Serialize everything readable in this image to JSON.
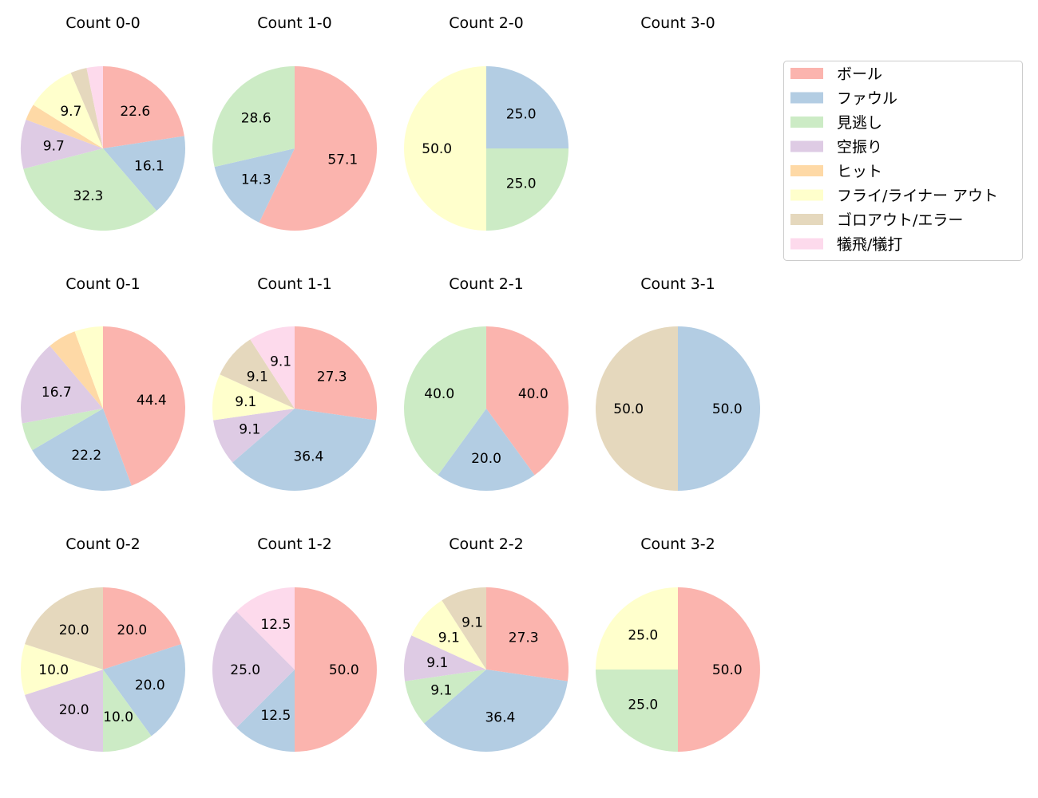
{
  "chart_data": {
    "type": "pie",
    "start_angle": 90,
    "direction": "clockwise",
    "legend": {
      "placement": "top-right",
      "entries": [
        "ボール",
        "ファウル",
        "見逃し",
        "空振り",
        "ヒット",
        "フライ/ライナー アウト",
        "ゴロアウト/エラー",
        "犠飛/犠打"
      ]
    },
    "colors": [
      "#fbb4ae",
      "#b3cde3",
      "#ccebc5",
      "#decbe4",
      "#fed9a6",
      "#ffffcc",
      "#e5d8bd",
      "#fddaec"
    ],
    "charts": [
      {
        "title": "Count 0-0",
        "values": [
          22.6,
          16.1,
          32.3,
          9.7,
          3.2,
          9.7,
          3.2,
          3.2
        ]
      },
      {
        "title": "Count 1-0",
        "values": [
          57.1,
          14.3,
          28.6,
          0,
          0,
          0,
          0,
          0
        ]
      },
      {
        "title": "Count 2-0",
        "values": [
          0,
          25.0,
          25.0,
          0,
          0,
          50.0,
          0,
          0
        ]
      },
      {
        "title": "Count 3-0",
        "values": [
          0,
          0,
          0,
          0,
          0,
          0,
          0,
          0
        ]
      },
      {
        "title": "Count 0-1",
        "values": [
          44.4,
          22.2,
          5.6,
          16.7,
          5.6,
          5.6,
          0,
          0
        ]
      },
      {
        "title": "Count 1-1",
        "values": [
          27.3,
          36.4,
          0,
          9.1,
          0,
          9.1,
          9.1,
          9.1
        ]
      },
      {
        "title": "Count 2-1",
        "values": [
          40.0,
          20.0,
          40.0,
          0,
          0,
          0,
          0,
          0
        ]
      },
      {
        "title": "Count 3-1",
        "values": [
          0,
          50.0,
          0,
          0,
          0,
          0,
          50.0,
          0
        ]
      },
      {
        "title": "Count 0-2",
        "values": [
          20.0,
          20.0,
          10.0,
          20.0,
          0,
          10.0,
          20.0,
          0
        ]
      },
      {
        "title": "Count 1-2",
        "values": [
          50.0,
          12.5,
          0,
          25.0,
          0,
          0,
          0,
          12.5
        ]
      },
      {
        "title": "Count 2-2",
        "values": [
          27.3,
          36.4,
          9.1,
          9.1,
          0,
          9.1,
          9.1,
          0
        ]
      },
      {
        "title": "Count 3-2",
        "values": [
          50.0,
          0,
          25.0,
          0,
          0,
          25.0,
          0,
          0
        ]
      }
    ]
  }
}
